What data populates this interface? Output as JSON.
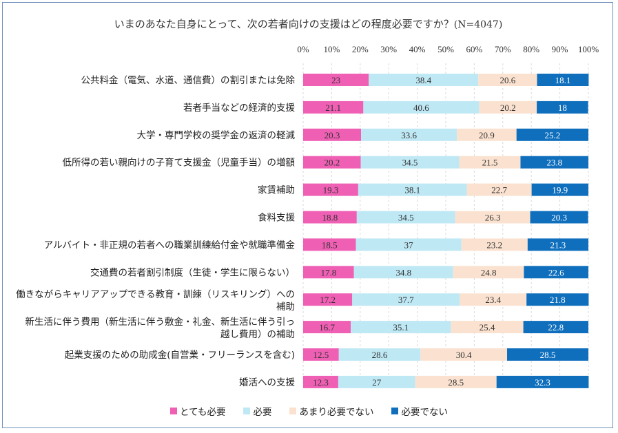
{
  "chart_data": {
    "type": "bar",
    "orientation": "horizontal-stacked",
    "title": "いまのあなた自身にとって、次の若者向けの支援はどの程度必要ですか？",
    "subtitle": "(N=4047)",
    "xlim": [
      0,
      100
    ],
    "ticks": [
      "0%",
      "10%",
      "20%",
      "30%",
      "40%",
      "50%",
      "60%",
      "70%",
      "80%",
      "90%",
      "100%"
    ],
    "legend_position": "bottom",
    "categories": [
      "公共料金（電気、水道、通信費）の割引または免除",
      "若者手当などの経済的支援",
      "大学・専門学校の奨学金の返済の軽減",
      "低所得の若い親向けの子育て支援金（児童手当）の増額",
      "家賃補助",
      "食料支援",
      "アルバイト・非正規の若者への職業訓練給付金や就職準備金",
      "交通費の若者割引制度（生徒・学生に限らない）",
      [
        "働きながらキャリアアップできる教育・訓練（リスキリング）への",
        "補助"
      ],
      [
        "新生活に伴う費用（新生活に伴う敷金・礼金、新生活に伴う引っ",
        "越し費用）の補助"
      ],
      "起業支援のための助成金(自営業・フリーランスを含む)",
      "婚活への支援"
    ],
    "series": [
      {
        "name": "とても必要",
        "color": "#ef5fb4",
        "values": [
          23,
          21.1,
          20.3,
          20.2,
          19.3,
          18.8,
          18.5,
          17.8,
          17.2,
          16.7,
          12.5,
          12.3
        ]
      },
      {
        "name": "必要",
        "color": "#bfe8f5",
        "values": [
          38.4,
          40.6,
          33.6,
          34.5,
          38.1,
          34.5,
          37,
          34.8,
          37.7,
          35.1,
          28.6,
          27
        ]
      },
      {
        "name": "あまり必要でない",
        "color": "#fbe2d0",
        "values": [
          20.6,
          20.2,
          20.9,
          21.5,
          22.7,
          26.3,
          23.2,
          24.8,
          23.4,
          25.4,
          30.4,
          28.5
        ]
      },
      {
        "name": "必要でない",
        "color": "#0f6fbd",
        "values": [
          18.1,
          18,
          25.2,
          23.8,
          19.9,
          20.3,
          21.3,
          22.6,
          21.8,
          22.8,
          28.5,
          32.3
        ]
      }
    ]
  }
}
